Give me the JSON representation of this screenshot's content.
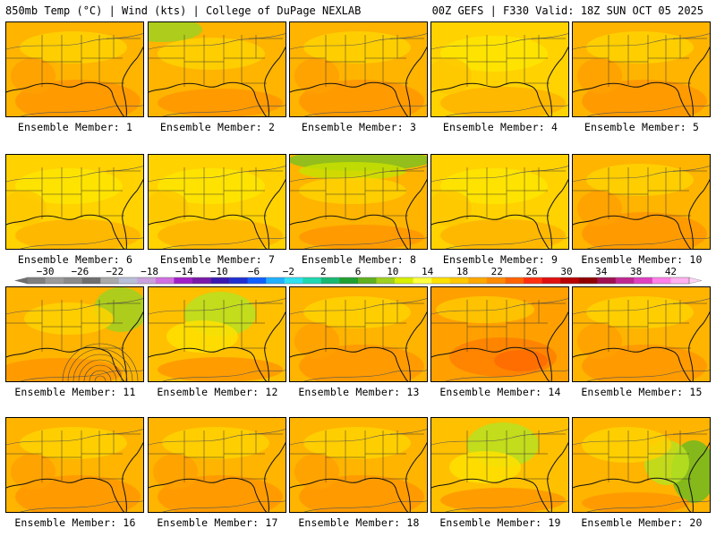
{
  "header": {
    "left": "850mb Temp (°C) | Wind (kts) | College of DuPage NEXLAB",
    "right": "00Z GEFS | F330 Valid: 18Z SUN OCT 05 2025"
  },
  "members": [
    {
      "label": "Ensemble Member: 1",
      "theme": "warm"
    },
    {
      "label": "Ensemble Member: 2",
      "theme": "green-nw"
    },
    {
      "label": "Ensemble Member: 3",
      "theme": "warm"
    },
    {
      "label": "Ensemble Member: 4",
      "theme": "yellow"
    },
    {
      "label": "Ensemble Member: 5",
      "theme": "warm"
    },
    {
      "label": "Ensemble Member: 6",
      "theme": "yellow"
    },
    {
      "label": "Ensemble Member: 7",
      "theme": "yellow"
    },
    {
      "label": "Ensemble Member: 8",
      "theme": "green-n"
    },
    {
      "label": "Ensemble Member: 9",
      "theme": "yellow"
    },
    {
      "label": "Ensemble Member: 10",
      "theme": "warm"
    },
    {
      "label": "Ensemble Member: 11",
      "theme": "green-ne"
    },
    {
      "label": "Ensemble Member: 12",
      "theme": "green-center"
    },
    {
      "label": "Ensemble Member: 13",
      "theme": "warm"
    },
    {
      "label": "Ensemble Member: 14",
      "theme": "hot"
    },
    {
      "label": "Ensemble Member: 15",
      "theme": "warm"
    },
    {
      "label": "Ensemble Member: 16",
      "theme": "warm"
    },
    {
      "label": "Ensemble Member: 17",
      "theme": "warm"
    },
    {
      "label": "Ensemble Member: 18",
      "theme": "warm"
    },
    {
      "label": "Ensemble Member: 19",
      "theme": "green-center"
    },
    {
      "label": "Ensemble Member: 20",
      "theme": "green-e"
    }
  ],
  "colorbar": {
    "tick_labels": [
      "−30",
      "−26",
      "−22",
      "−18",
      "−14",
      "−10",
      "−6",
      "−2",
      "2",
      "6",
      "10",
      "14",
      "18",
      "22",
      "26",
      "30",
      "34",
      "38",
      "42"
    ],
    "colors": [
      "#7f7f7f",
      "#9a9a9a",
      "#8a8a8a",
      "#6f6f6f",
      "#a9a9a9",
      "#b8bfd8",
      "#c9a0dc",
      "#d070e0",
      "#a020c8",
      "#7a1aa8",
      "#3a18b0",
      "#2030d0",
      "#1060ff",
      "#20b0ff",
      "#30e0f0",
      "#20d8b0",
      "#18b870",
      "#20a030",
      "#60b020",
      "#a0d020",
      "#d8f000",
      "#ffff40",
      "#ffe000",
      "#ffc800",
      "#ffa800",
      "#ff8c00",
      "#ff6400",
      "#ff3010",
      "#e01010",
      "#b80000",
      "#900000",
      "#a01050",
      "#c02890",
      "#e040c0",
      "#ff80e8",
      "#ffb0f0"
    ]
  }
}
